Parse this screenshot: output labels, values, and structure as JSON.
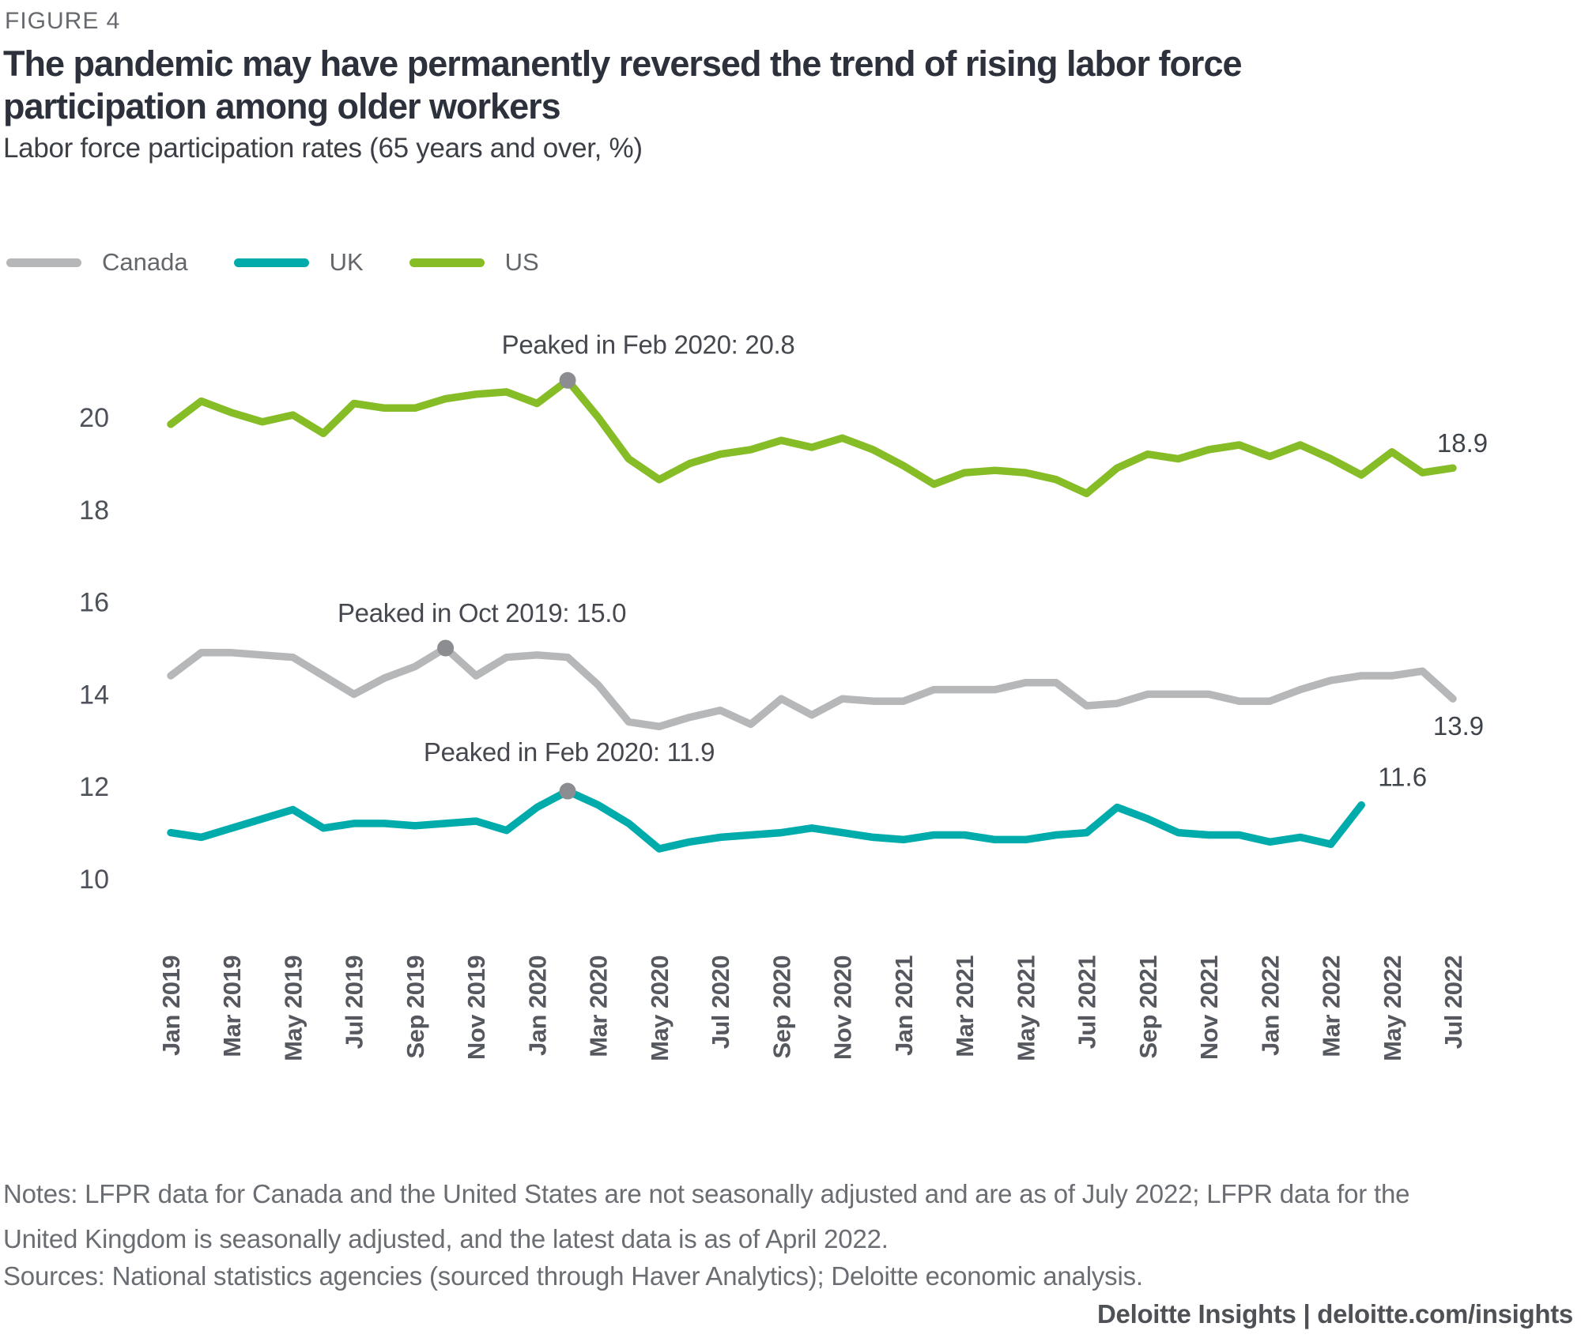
{
  "figure_label": "FIGURE 4",
  "title": {
    "lines": [
      "The pandemic may have permanently reversed the trend of rising labor force",
      "participation among older workers"
    ]
  },
  "subtitle": "Labor force participation rates (65 years and over, %)",
  "legend": [
    {
      "label": "Canada",
      "color": "#b6b7b8"
    },
    {
      "label": "UK",
      "color": "#00abab"
    },
    {
      "label": "US",
      "color": "#86bc25"
    }
  ],
  "chart_data": {
    "type": "line",
    "title": "Labor force participation rates (65 years and over, %)",
    "x_start": "Jan 2019",
    "x_end": "Jul 2022",
    "x_tick_labels": [
      "Jan 2019",
      "Mar 2019",
      "May 2019",
      "Jul 2019",
      "Sep 2019",
      "Nov 2019",
      "Jan 2020",
      "Mar 2020",
      "May 2020",
      "Jul 2020",
      "Sep 2020",
      "Nov 2020",
      "Jan 2021",
      "Mar 2021",
      "May 2021",
      "Jul 2021",
      "Sep 2021",
      "Nov 2021",
      "Jan 2022",
      "Mar 2022",
      "May 2022",
      "Jul 2022"
    ],
    "y_ticks": [
      10,
      12,
      14,
      16,
      18,
      20
    ],
    "y_range": [
      9.5,
      21.5
    ],
    "grid": "off",
    "legend_position": "top-left",
    "series": [
      {
        "name": "Canada",
        "color": "#b6b7b8",
        "values": [
          14.4,
          14.9,
          14.9,
          14.85,
          14.8,
          14.4,
          14.0,
          14.35,
          14.6,
          15.0,
          14.4,
          14.8,
          14.85,
          14.8,
          14.2,
          13.4,
          13.3,
          13.5,
          13.65,
          13.35,
          13.9,
          13.55,
          13.9,
          13.85,
          13.85,
          14.1,
          14.1,
          14.1,
          14.25,
          14.25,
          13.75,
          13.8,
          14.0,
          14.0,
          14.0,
          13.85,
          13.85,
          14.1,
          14.3,
          14.4,
          14.4,
          14.5,
          13.9
        ]
      },
      {
        "name": "UK",
        "color": "#00abab",
        "values": [
          11.0,
          10.9,
          11.1,
          11.3,
          11.5,
          11.1,
          11.2,
          11.2,
          11.15,
          11.2,
          11.25,
          11.05,
          11.55,
          11.9,
          11.6,
          11.2,
          10.65,
          10.8,
          10.9,
          10.95,
          11.0,
          11.1,
          11.0,
          10.9,
          10.85,
          10.95,
          10.95,
          10.85,
          10.85,
          10.95,
          11.0,
          11.55,
          11.3,
          11.0,
          10.95,
          10.95,
          10.8,
          10.9,
          10.75,
          11.6
        ]
      },
      {
        "name": "US",
        "color": "#86bc25",
        "values": [
          19.85,
          20.35,
          20.1,
          19.9,
          20.05,
          19.65,
          20.3,
          20.2,
          20.2,
          20.4,
          20.5,
          20.55,
          20.3,
          20.8,
          20.0,
          19.1,
          18.65,
          19.0,
          19.2,
          19.3,
          19.5,
          19.35,
          19.55,
          19.3,
          18.95,
          18.55,
          18.8,
          18.85,
          18.8,
          18.65,
          18.35,
          18.9,
          19.2,
          19.1,
          19.3,
          19.4,
          19.15,
          19.4,
          19.1,
          18.75,
          19.25,
          18.8,
          18.9
        ]
      }
    ],
    "peak_annotations": [
      {
        "series": "US",
        "text": "Peaked in Feb 2020: 20.8",
        "month_index": 13,
        "value": 20.8
      },
      {
        "series": "Canada",
        "text": "Peaked in Oct 2019: 15.0",
        "month_index": 9,
        "value": 15.0
      },
      {
        "series": "UK",
        "text": "Peaked in Feb 2020: 11.9",
        "month_index": 13,
        "value": 11.9
      }
    ],
    "end_labels": [
      {
        "series": "US",
        "text": "18.9"
      },
      {
        "series": "Canada",
        "text": "13.9"
      },
      {
        "series": "UK",
        "text": "11.6"
      }
    ],
    "annotation_dot_color": "#8b8d90"
  },
  "notes": {
    "line1": "Notes: LFPR data for Canada and the United States are not seasonally adjusted and are as of July 2022; LFPR data for the",
    "line2": "United Kingdom is seasonally adjusted, and the latest data is as of April 2022."
  },
  "sources": "Sources: National statistics agencies (sourced through Haver Analytics); Deloitte economic analysis.",
  "footer": {
    "text": "Deloitte Insights | deloitte.com/insights"
  }
}
